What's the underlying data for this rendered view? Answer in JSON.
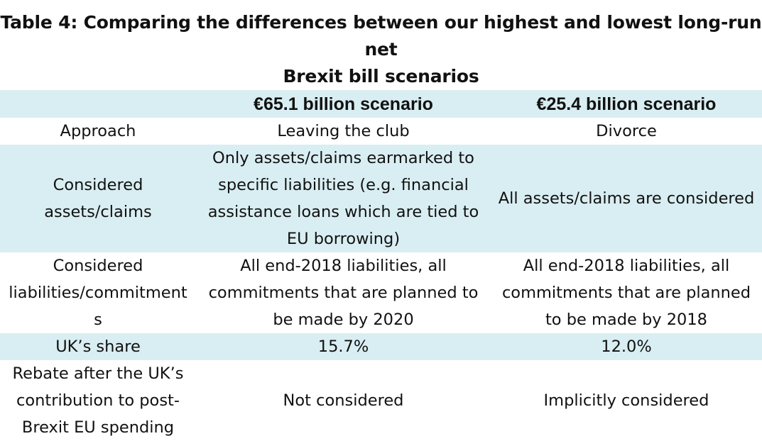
{
  "title_line1": "Table 4: Comparing the differences between our highest and lowest long-run net",
  "title_line2": "Brexit bill scenarios",
  "header": [
    "",
    "€65.1 billion scenario",
    "€25.4 billion scenario"
  ],
  "rows": [
    {
      "label": "Approach",
      "high": "Leaving the club",
      "low": "Divorce"
    },
    {
      "label_lines": [
        "Considered",
        "assets/claims"
      ],
      "high_lines": [
        "Only assets/claims earmarked to",
        "specific liabilities (e.g. financial",
        "assistance loans which are tied to",
        "EU borrowing)"
      ],
      "low": "All assets/claims are considered"
    },
    {
      "label_lines": [
        "Considered",
        "liabilities/commitment",
        "s"
      ],
      "high_lines": [
        "All end-2018 liabilities, all",
        "commitments that are planned to",
        "be made by 2020"
      ],
      "low_lines": [
        "All end-2018 liabilities, all",
        "commitments that are planned",
        "to be made by 2018"
      ]
    },
    {
      "label": "UK’s share",
      "high": "15.7%",
      "low": "12.0%"
    },
    {
      "label_lines": [
        "Rebate after the UK’s",
        "contribution to post-",
        "Brexit EU spending"
      ],
      "high": "Not considered",
      "low": "Implicitly considered"
    }
  ],
  "colors": {
    "band": "#d9eef2",
    "text": "#111111"
  }
}
